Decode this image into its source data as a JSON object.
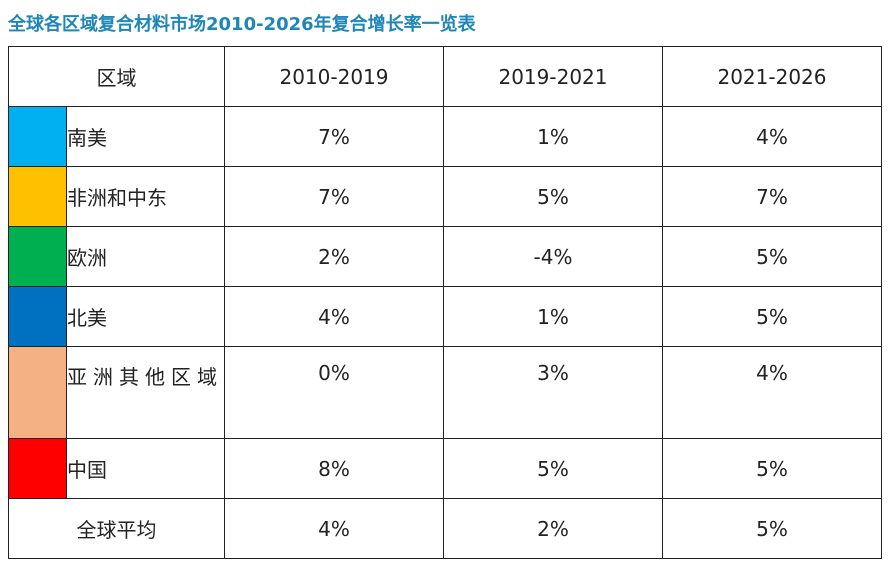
{
  "title": "全球各区域复合材料市场2010-2026年复合增长率一览表",
  "chart_data": {
    "type": "table",
    "title": "全球各区域复合材料市场2010-2026年复合增长率一览表",
    "header": {
      "region": "区域",
      "periods": [
        "2010-2019",
        "2019-2021",
        "2021-2026"
      ]
    },
    "rows": [
      {
        "region": "南美",
        "color": "#00b0f0",
        "values": [
          "7%",
          "1%",
          "4%"
        ]
      },
      {
        "region": "非洲和中东",
        "color": "#ffc000",
        "values": [
          "7%",
          "5%",
          "7%"
        ]
      },
      {
        "region": "欧洲",
        "color": "#00b050",
        "values": [
          "2%",
          "-4%",
          "5%"
        ]
      },
      {
        "region": "北美",
        "color": "#0070c0",
        "values": [
          "4%",
          "1%",
          "5%"
        ]
      },
      {
        "region": "亚洲其他区域",
        "color": "#f4b183",
        "values": [
          "0%",
          "3%",
          "4%"
        ]
      },
      {
        "region": "中国",
        "color": "#ff0000",
        "values": [
          "8%",
          "5%",
          "5%"
        ]
      }
    ],
    "average": {
      "label": "全球平均",
      "values": [
        "4%",
        "2%",
        "5%"
      ]
    }
  }
}
